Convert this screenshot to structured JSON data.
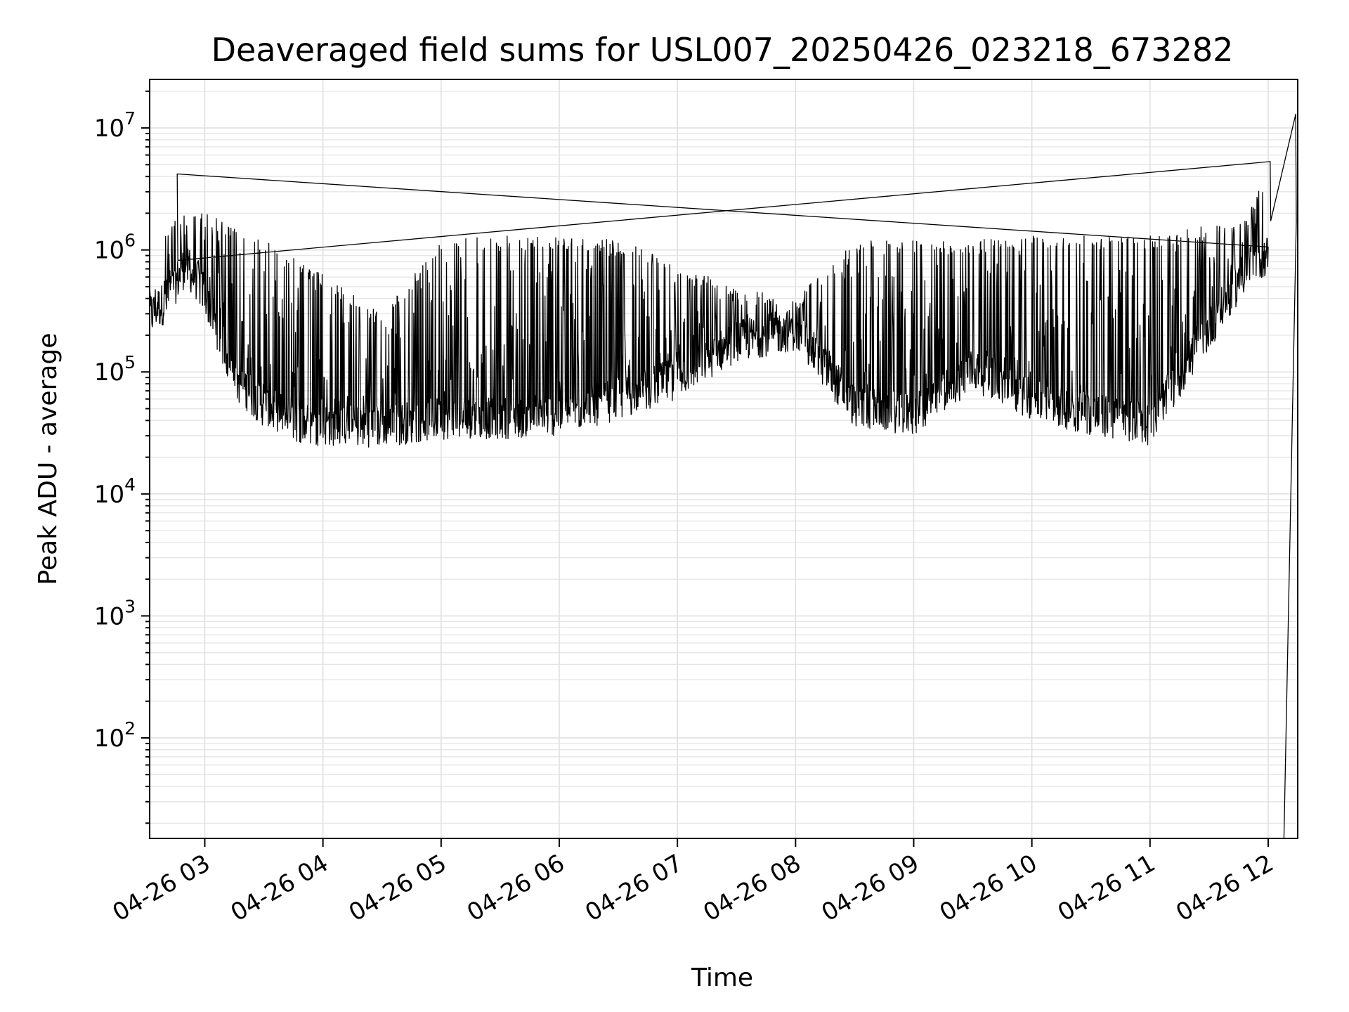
{
  "chart_data": {
    "type": "line",
    "title": "Deaveraged field sums for USL007_20250426_023218_673282",
    "xlabel": "Time",
    "ylabel": "Peak ADU - average",
    "yscale": "log",
    "ylim": [
      15,
      25000000
    ],
    "xlim": [
      "2025-04-26 02:32",
      "2025-04-26 12:15"
    ],
    "grid": true,
    "x_ticks": [
      "04-26 03",
      "04-26 04",
      "04-26 05",
      "04-26 06",
      "04-26 07",
      "04-26 08",
      "04-26 09",
      "04-26 10",
      "04-26 11",
      "04-26 12"
    ],
    "y_ticks": [
      {
        "base": "10",
        "exp": "2",
        "value": 100
      },
      {
        "base": "10",
        "exp": "3",
        "value": 1000
      },
      {
        "base": "10",
        "exp": "4",
        "value": 10000
      },
      {
        "base": "10",
        "exp": "5",
        "value": 100000
      },
      {
        "base": "10",
        "exp": "6",
        "value": 1000000
      },
      {
        "base": "10",
        "exp": "7",
        "value": 10000000
      }
    ],
    "series": [
      {
        "color": "#000000",
        "envelope": [
          {
            "t": "02:32",
            "low": 200000,
            "high": 300000
          },
          {
            "t": "02:40",
            "low": 250000,
            "high": 1500000
          },
          {
            "t": "02:50",
            "low": 500000,
            "high": 2000000
          },
          {
            "t": "03:00",
            "low": 300000,
            "high": 2200000
          },
          {
            "t": "03:15",
            "low": 60000,
            "high": 1500000
          },
          {
            "t": "03:30",
            "low": 35000,
            "high": 1200000
          },
          {
            "t": "03:50",
            "low": 25000,
            "high": 800000
          },
          {
            "t": "04:30",
            "low": 24000,
            "high": 300000
          },
          {
            "t": "05:00",
            "low": 28000,
            "high": 1200000
          },
          {
            "t": "05:30",
            "low": 28000,
            "high": 1300000
          },
          {
            "t": "06:00",
            "low": 30000,
            "high": 1300000
          },
          {
            "t": "06:30",
            "low": 40000,
            "high": 1200000
          },
          {
            "t": "07:00",
            "low": 60000,
            "high": 800000
          },
          {
            "t": "07:30",
            "low": 120000,
            "high": 500000
          },
          {
            "t": "08:00",
            "low": 150000,
            "high": 400000
          },
          {
            "t": "08:30",
            "low": 35000,
            "high": 1200000
          },
          {
            "t": "09:00",
            "low": 30000,
            "high": 1200000
          },
          {
            "t": "09:30",
            "low": 70000,
            "high": 1200000
          },
          {
            "t": "10:00",
            "low": 40000,
            "high": 1300000
          },
          {
            "t": "10:30",
            "low": 30000,
            "high": 1300000
          },
          {
            "t": "11:00",
            "low": 25000,
            "high": 1300000
          },
          {
            "t": "11:30",
            "low": 150000,
            "high": 1600000
          },
          {
            "t": "11:50",
            "low": 500000,
            "high": 2000000
          },
          {
            "t": "12:00",
            "low": 600000,
            "high": 5000000
          }
        ],
        "spikes": [
          {
            "t": "02:46",
            "value": 4200000
          },
          {
            "t": "12:01",
            "value": 5300000
          },
          {
            "t": "12:14",
            "value": 13000000
          }
        ],
        "drops": [
          {
            "t": "12:08",
            "value": 15
          },
          {
            "t": "12:14",
            "value": 15
          }
        ]
      }
    ]
  }
}
